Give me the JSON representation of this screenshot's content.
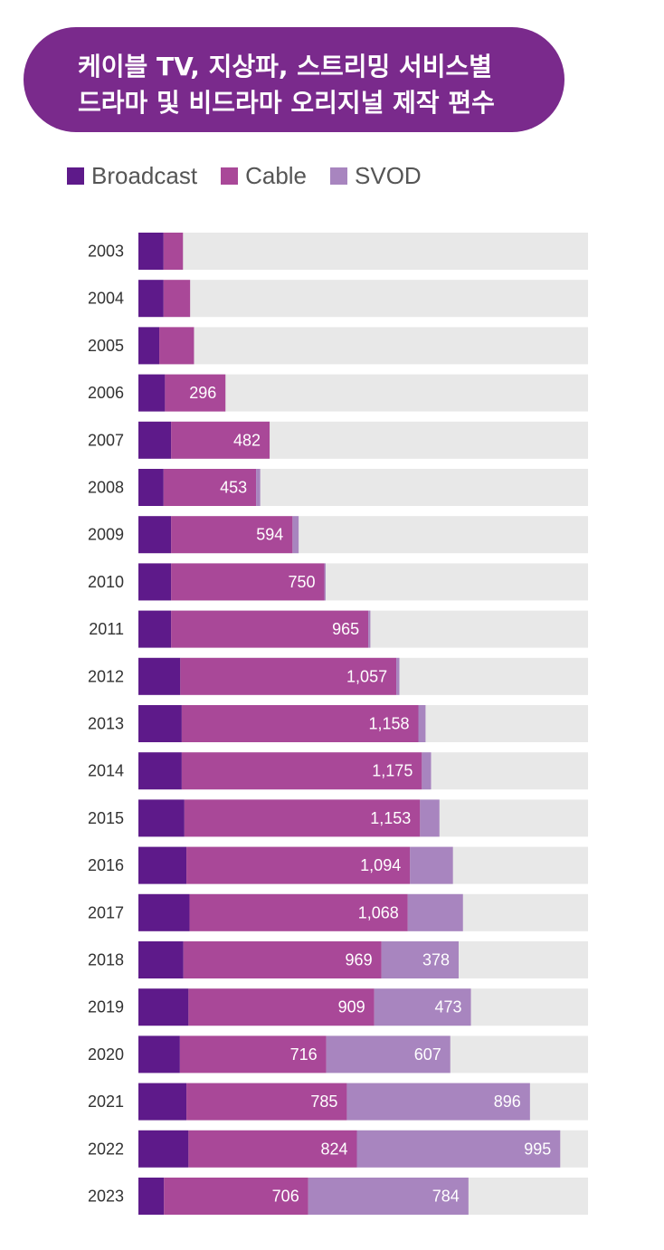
{
  "title_lines": [
    "케이블 TV, 지상파, 스트리밍 서비스별",
    "드라마 및 비드라마 오리지널  제작 편수"
  ],
  "colors": {
    "Broadcast": "#5e1a8a",
    "Cable": "#a94898",
    "SVOD": "#a885bf",
    "track": "#e8e8e8"
  },
  "chart_data": {
    "type": "bar",
    "orientation": "horizontal",
    "stacked": true,
    "title": "케이블 TV, 지상파, 스트리밍 서비스별 드라마 및 비드라마 오리지널  제작 편수",
    "legend_position": "top-left",
    "xlim": [
      0,
      2200
    ],
    "categories": [
      "2003",
      "2004",
      "2005",
      "2006",
      "2007",
      "2008",
      "2009",
      "2010",
      "2011",
      "2012",
      "2013",
      "2014",
      "2015",
      "2016",
      "2017",
      "2018",
      "2019",
      "2020",
      "2021",
      "2022",
      "2023"
    ],
    "series": [
      {
        "name": "Broadcast",
        "values": [
          123,
          123,
          102,
          130,
          160,
          123,
          160,
          160,
          160,
          205,
          212,
          212,
          225,
          235,
          250,
          220,
          245,
          203,
          235,
          245,
          125
        ]
      },
      {
        "name": "Cable",
        "values": [
          95,
          130,
          170,
          296,
          482,
          453,
          594,
          750,
          965,
          1057,
          1158,
          1175,
          1153,
          1094,
          1068,
          969,
          909,
          716,
          785,
          824,
          706
        ]
      },
      {
        "name": "SVOD",
        "values": [
          0,
          0,
          0,
          0,
          0,
          20,
          30,
          6,
          10,
          15,
          35,
          45,
          95,
          210,
          270,
          378,
          473,
          607,
          896,
          995,
          784
        ]
      }
    ],
    "data_labels": {
      "Broadcast": [
        "",
        "",
        "",
        "",
        "",
        "",
        "",
        "",
        "",
        "",
        "",
        "",
        "",
        "",
        "",
        "",
        "",
        "",
        "",
        "",
        ""
      ],
      "Cable": [
        "",
        "",
        "",
        "296",
        "482",
        "453",
        "594",
        "750",
        "965",
        "1,057",
        "1,158",
        "1,175",
        "1,153",
        "1,094",
        "1,068",
        "969",
        "909",
        "716",
        "785",
        "824",
        "706"
      ],
      "SVOD": [
        "",
        "",
        "",
        "",
        "",
        "",
        "",
        "",
        "",
        "",
        "",
        "",
        "",
        "",
        "",
        "378",
        "473",
        "607",
        "896",
        "995",
        "784"
      ]
    }
  }
}
